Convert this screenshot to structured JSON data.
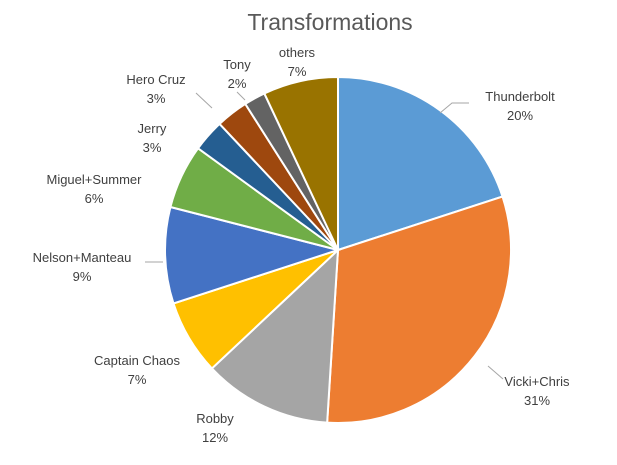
{
  "chart_data": {
    "type": "pie",
    "title": "Transformations",
    "slices": [
      {
        "name": "Thunderbolt",
        "value": 20,
        "label": "20%",
        "color": "#5B9BD5"
      },
      {
        "name": "Vicki+Chris",
        "value": 31,
        "label": "31%",
        "color": "#ED7D31"
      },
      {
        "name": "Robby",
        "value": 12,
        "label": "12%",
        "color": "#A5A5A5"
      },
      {
        "name": "Captain Chaos",
        "value": 7,
        "label": "7%",
        "color": "#FFC000"
      },
      {
        "name": "Nelson+Manteau",
        "value": 9,
        "label": "9%",
        "color": "#4472C4"
      },
      {
        "name": "Miguel+Summer",
        "value": 6,
        "label": "6%",
        "color": "#70AD47"
      },
      {
        "name": "Jerry",
        "value": 3,
        "label": "3%",
        "color": "#255E91"
      },
      {
        "name": "Hero Cruz",
        "value": 3,
        "label": "3%",
        "color": "#9E480E"
      },
      {
        "name": "Tony",
        "value": 2,
        "label": "2%",
        "color": "#636363"
      },
      {
        "name": "others",
        "value": 7,
        "label": "7%",
        "color": "#997300"
      }
    ]
  }
}
